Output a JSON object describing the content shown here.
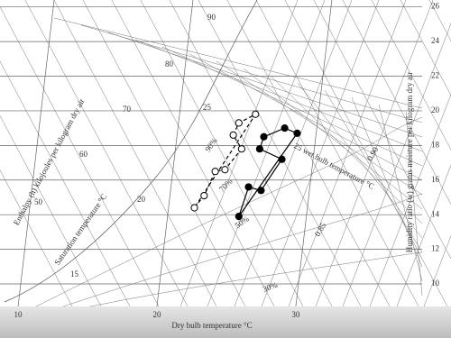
{
  "chart_data": {
    "type": "psychrometric",
    "x_label": "Dry bulb temperature °C",
    "y_label": "Humidity ratio (w) grams moisture per kilogram dry air",
    "xlim": [
      8.7,
      39.1
    ],
    "xticks": [
      10,
      20,
      30
    ],
    "ylim": [
      8.7,
      26.4
    ],
    "yticks": [
      10,
      12,
      14,
      16,
      18,
      20,
      22,
      24,
      26
    ],
    "grid": true,
    "series": [
      {
        "name": null,
        "color": "#000000",
        "marker": "open",
        "line": "dashed",
        "x": [
          22.7,
          23.4,
          24.2,
          24.9,
          26.1,
          25.5,
          25.9,
          27.1
        ],
        "values": [
          14.4,
          15.1,
          16.5,
          16.6,
          17.8,
          18.6,
          19.3,
          19.8
        ]
      },
      {
        "name": null,
        "color": "#000000",
        "marker": "filled",
        "line": "solid",
        "x": [
          25.9,
          26.6,
          27.5,
          29.0,
          27.4,
          27.7,
          29.2,
          30.1
        ],
        "values": [
          13.9,
          15.6,
          15.4,
          17.2,
          17.8,
          18.5,
          19.0,
          18.7
        ]
      }
    ],
    "annotations": [
      "Enthalpy (h) kilojoules per kilogram dry air",
      "Saturation temperature °C",
      "25 wet bulb temperature °C",
      "90",
      "80",
      "70",
      "60",
      "50",
      "25",
      "20",
      "15",
      "0.90",
      "0.85",
      "90%",
      "70%",
      "50%",
      "30%"
    ]
  }
}
